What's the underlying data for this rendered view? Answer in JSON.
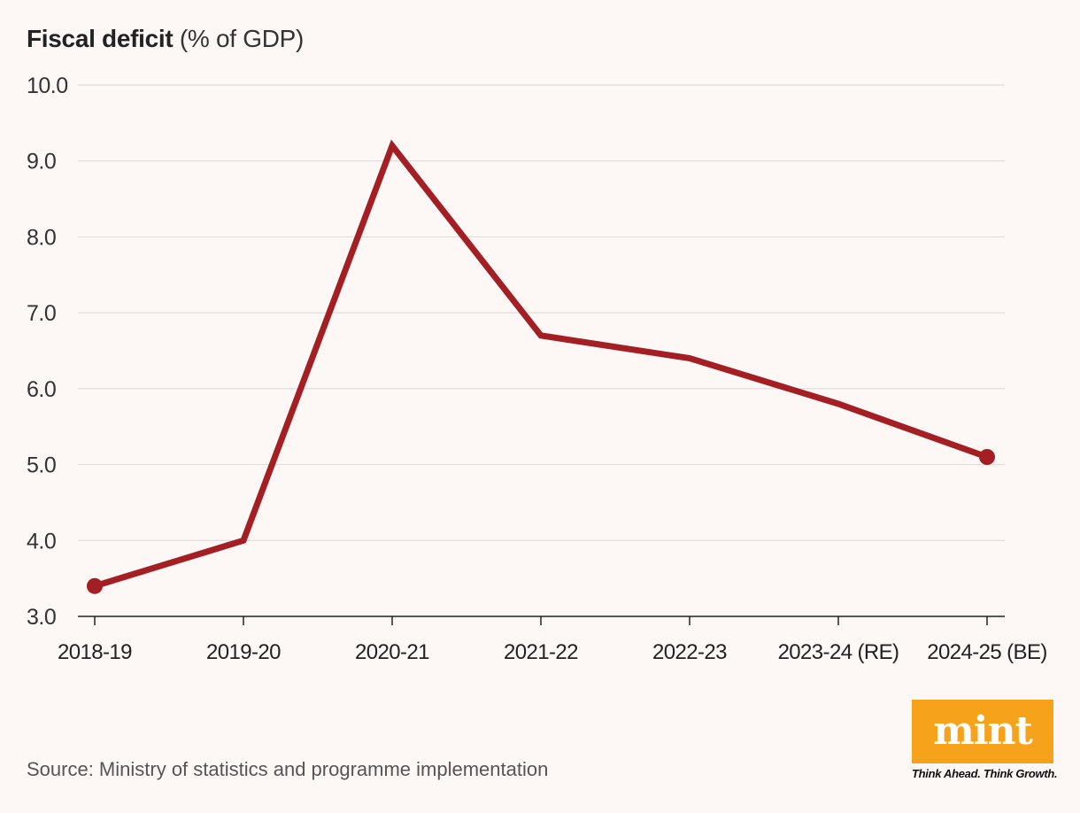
{
  "title": {
    "bold": "Fiscal deficit",
    "normal": "(% of GDP)"
  },
  "chart_data": {
    "type": "line",
    "title": "Fiscal deficit (% of GDP)",
    "categories": [
      "2018-19",
      "2019-20",
      "2020-21",
      "2021-22",
      "2022-23",
      "2023-24 (RE)",
      "2024-25 (BE)"
    ],
    "series": [
      {
        "name": "Fiscal deficit",
        "values": [
          3.4,
          4.0,
          9.2,
          6.7,
          6.4,
          5.8,
          5.1
        ],
        "color": "#a31f24"
      }
    ],
    "ylim": [
      3.0,
      10.0
    ],
    "yticks": [
      "3.0",
      "4.0",
      "5.0",
      "6.0",
      "7.0",
      "8.0",
      "9.0",
      "10.0"
    ],
    "xlabel": "",
    "ylabel": "",
    "grid": true,
    "endpoint_markers": true
  },
  "source": "Source: Ministry of statistics and programme implementation",
  "logo": {
    "word": "mint",
    "tagline": "Think Ahead. Think Growth.",
    "color": "#f7a21b"
  },
  "colors": {
    "background": "#fdf7f6",
    "line": "#a31f24",
    "grid": "#e2dcdb",
    "axis": "#222222"
  }
}
